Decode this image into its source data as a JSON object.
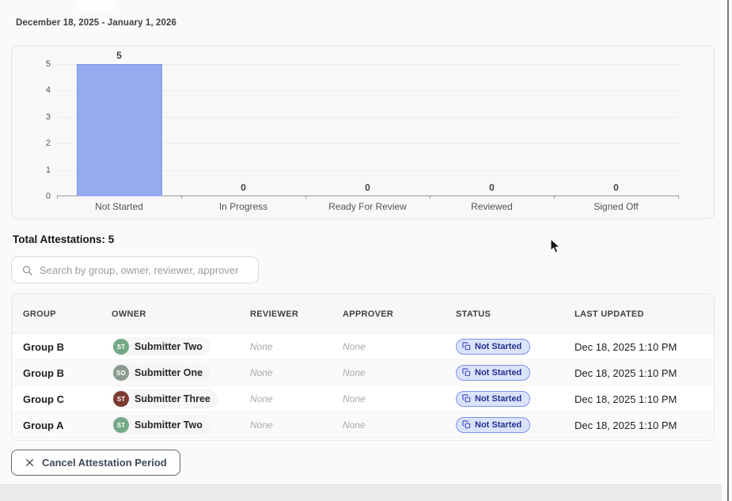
{
  "page": {
    "date_range": "December 18, 2025 - January 1, 2026",
    "total_attestations": "Total Attestations: 5",
    "cancel_button_label": "Cancel Attestation Period"
  },
  "search": {
    "placeholder": "Search by group, owner, reviewer, approver"
  },
  "chart_data": {
    "type": "bar",
    "categories": [
      "Not Started",
      "In Progress",
      "Ready For Review",
      "Reviewed",
      "Signed Off"
    ],
    "values": [
      5,
      0,
      0,
      0,
      0
    ],
    "title": "",
    "xlabel": "",
    "ylabel": "",
    "ylim": [
      0,
      5
    ],
    "y_ticks": [
      0,
      1,
      2,
      3,
      4,
      5
    ],
    "grid": true,
    "legend": false,
    "bar_color": "#94abef",
    "bar_border_color": "#7e93e9"
  },
  "table": {
    "columns": [
      "GROUP",
      "OWNER",
      "REVIEWER",
      "APPROVER",
      "STATUS",
      "LAST UPDATED"
    ],
    "rows": [
      {
        "group": "Group B",
        "owner": "Submitter Two",
        "owner_initials": "ST",
        "avatar_color": "#74a886",
        "reviewer": "None",
        "approver": "None",
        "status": "Not Started",
        "last_updated": "Dec 18, 2025 1:10 PM"
      },
      {
        "group": "Group B",
        "owner": "Submitter One",
        "owner_initials": "SO",
        "avatar_color": "#8a9a8e",
        "reviewer": "None",
        "approver": "None",
        "status": "Not Started",
        "last_updated": "Dec 18, 2025 1:10 PM"
      },
      {
        "group": "Group C",
        "owner": "Submitter Three",
        "owner_initials": "ST",
        "avatar_color": "#7d3b30",
        "reviewer": "None",
        "approver": "None",
        "status": "Not Started",
        "last_updated": "Dec 18, 2025 1:10 PM"
      },
      {
        "group": "Group A",
        "owner": "Submitter Two",
        "owner_initials": "ST",
        "avatar_color": "#74a886",
        "reviewer": "None",
        "approver": "None",
        "status": "Not Started",
        "last_updated": "Dec 18, 2025 1:10 PM"
      }
    ]
  },
  "colors": {
    "badge_bg": "#dbe3fa",
    "badge_border": "#7f92ee",
    "badge_text": "#25328f",
    "page_bg": "#fafafa",
    "card_bg": "#f8f8f9"
  }
}
